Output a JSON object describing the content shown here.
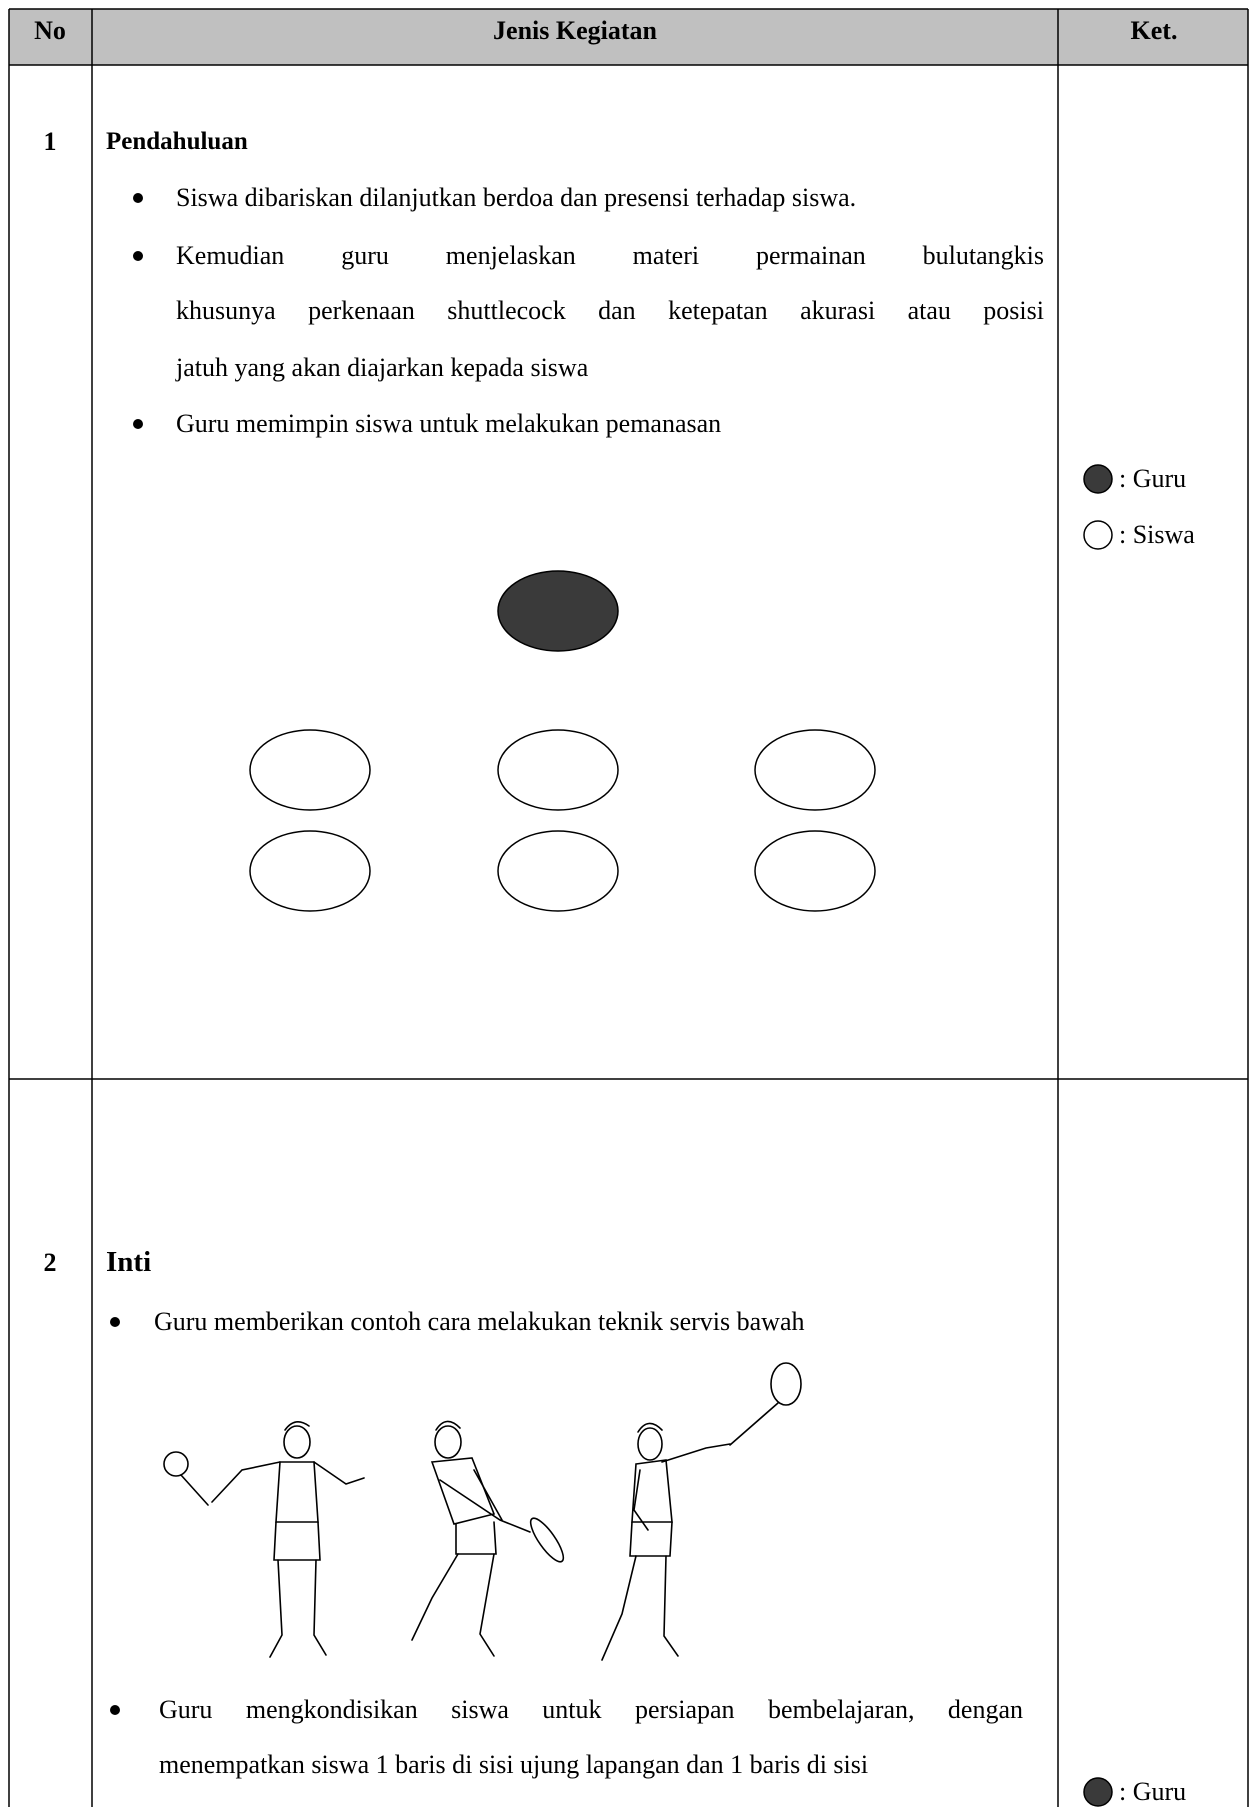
{
  "header": {
    "no": "No",
    "activity": "Jenis Kegiatan",
    "note": "Ket."
  },
  "rows": [
    {
      "no": "1",
      "title": "Pendahuluan",
      "items": [
        {
          "lines": [
            "Siswa dibariskan dilanjutkan berdoa dan presensi terhadap siswa."
          ]
        },
        {
          "lines": [
            "Kemudian guru menjelaskan materi permainan bulutangkis",
            "khusunya perkenaan shuttlecock dan ketepatan akurasi atau posisi",
            "jatuh yang akan diajarkan kepada siswa"
          ]
        },
        {
          "lines": [
            "Guru memimpin siswa untuk melakukan pemanasan"
          ]
        }
      ],
      "legend": [
        ": Guru",
        ": Siswa"
      ]
    },
    {
      "no": "2",
      "title": "Inti",
      "items": [
        {
          "lines": [
            "Guru memberikan contoh cara melakukan teknik servis bawah"
          ]
        },
        {
          "lines": [
            "Guru mengkondisikan siswa untuk persiapan bembelajaran, dengan",
            "menempatkan siswa 1 baris di sisi ujung lapangan dan 1 baris di sisi"
          ]
        }
      ],
      "legend": [
        ": Guru"
      ]
    }
  ]
}
